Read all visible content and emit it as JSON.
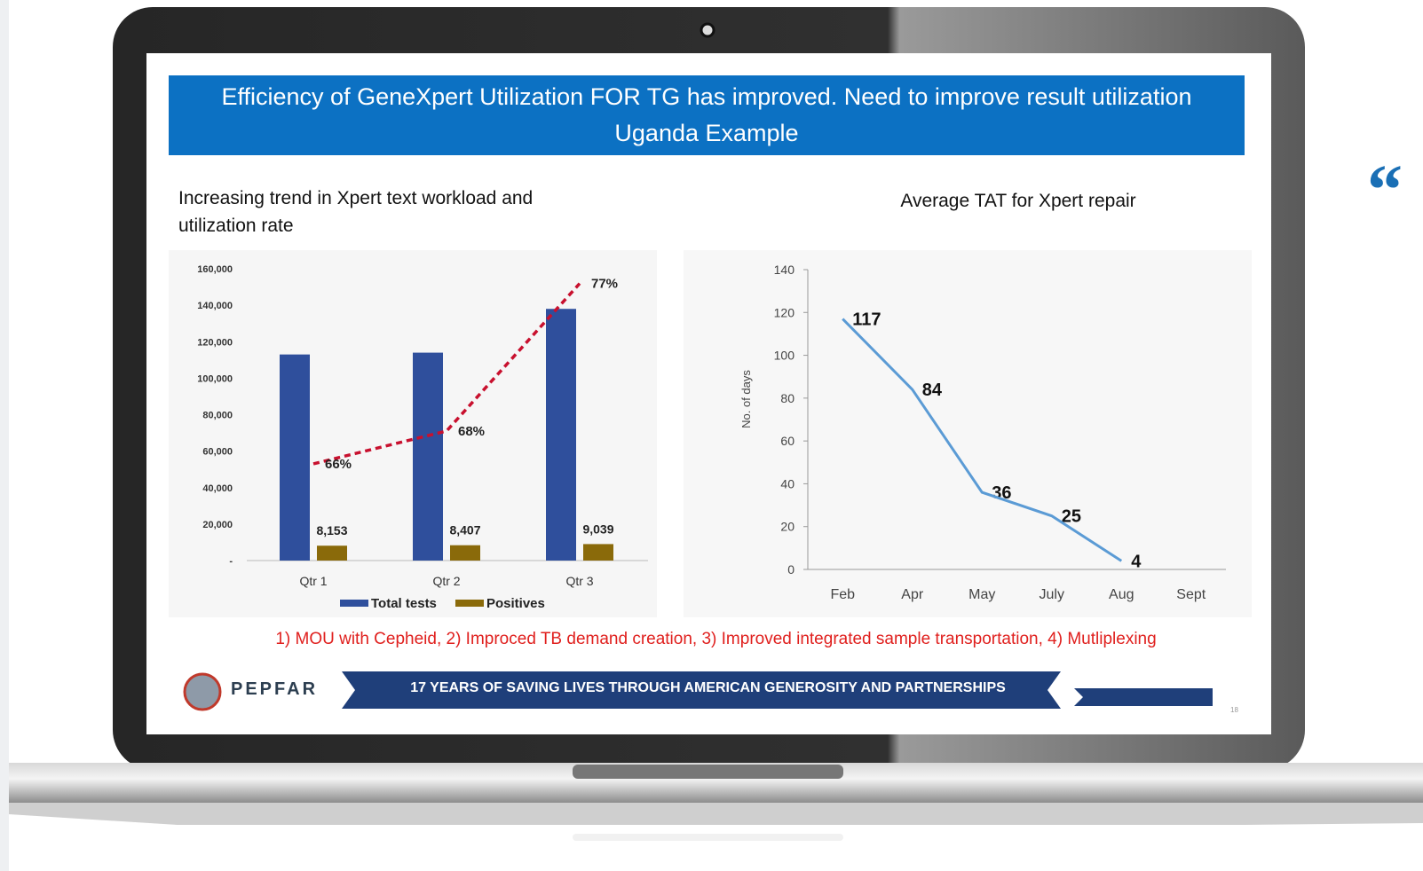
{
  "slide": {
    "title": "Efficiency of GeneXpert Utilization FOR TG has improved. Need to improve result utilization",
    "subtitle": "Uganda Example",
    "note": "1) MOU with Cepheid, 2) Improced TB demand creation, 3) Improved integrated sample transportation, 4) Mutliplexing",
    "logo_text": "PEPFAR",
    "banner": "17 YEARS OF SAVING LIVES THROUGH AMERICAN GENEROSITY AND PARTNERSHIPS",
    "page_number": "18",
    "side_quote": "“"
  },
  "chart_data": [
    {
      "type": "bar",
      "title": "Increasing trend in Xpert text workload and utilization rate",
      "categories": [
        "Qtr 1",
        "Qtr 2",
        "Qtr 3"
      ],
      "series": [
        {
          "name": "Total tests",
          "color": "#2f4f9c",
          "values": [
            113000,
            114000,
            138000
          ]
        },
        {
          "name": "Positives",
          "color": "#8a6a0a",
          "values": [
            8153,
            8407,
            9039
          ],
          "value_labels": [
            "8,153",
            "8,407",
            "9,039"
          ]
        },
        {
          "type": "line",
          "axis": "y2",
          "color": "#c8102e",
          "dashed": true,
          "values": [
            66,
            68,
            77
          ],
          "value_labels": [
            "66%",
            "68%",
            "77%"
          ]
        }
      ],
      "ylim": [
        0,
        160000
      ],
      "yticks": [
        {
          "value": 0,
          "label": "-"
        },
        {
          "value": 20000,
          "label": "20,000"
        },
        {
          "value": 40000,
          "label": "40,000"
        },
        {
          "value": 60000,
          "label": "60,000"
        },
        {
          "value": 80000,
          "label": "80,000"
        },
        {
          "value": 100000,
          "label": "100,000"
        },
        {
          "value": 120000,
          "label": "120,000"
        },
        {
          "value": 140000,
          "label": "140,000"
        },
        {
          "value": 160000,
          "label": "160,000"
        }
      ],
      "y2lim": [
        60.1,
        77.9
      ],
      "legend": "bottom"
    },
    {
      "type": "line",
      "title": "Average TAT for Xpert repair",
      "ylabel": "No. of days",
      "categories": [
        "Feb",
        "Apr",
        "May",
        "July",
        "Aug",
        "Sept"
      ],
      "series": [
        {
          "color": "#5b9bd5",
          "values": [
            117,
            84,
            36,
            25,
            4,
            null
          ]
        }
      ],
      "ylim": [
        0,
        140
      ],
      "yticks": [
        0,
        20,
        40,
        60,
        80,
        100,
        120,
        140
      ]
    }
  ]
}
